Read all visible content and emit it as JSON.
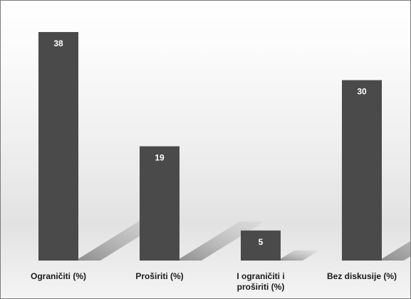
{
  "chart_data": {
    "type": "bar",
    "categories": [
      [
        "Ograničiti (%)"
      ],
      [
        "Proširiti (%)"
      ],
      [
        "I ograničiti i",
        "proširiti (%)"
      ],
      [
        "Bez diskusije (%)"
      ]
    ],
    "values": [
      38,
      19,
      5,
      30
    ],
    "ylim": [
      0,
      38
    ],
    "title": "",
    "xlabel": "",
    "ylabel": "",
    "grid": false,
    "legend": "none",
    "colors": {
      "bar": "#4a4a4a",
      "value_label": "#ffffff",
      "category_label": "#1a1a1a",
      "shadow": "#8c8c8c"
    }
  }
}
